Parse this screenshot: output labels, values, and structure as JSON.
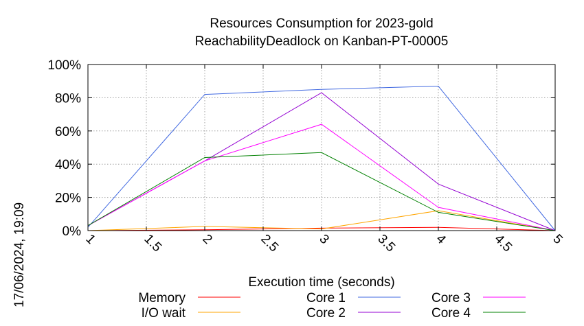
{
  "chart_data": {
    "type": "line",
    "title": "Resources Consumption for 2023-gold",
    "subtitle": "ReachabilityDeadlock on Kanban-PT-00005",
    "xlabel": "Execution time (seconds)",
    "ylabel": "",
    "timestamp": "17/06/2024, 19:09",
    "xlim": [
      1,
      5
    ],
    "ylim": [
      0,
      100
    ],
    "x_ticks": [
      "1",
      "1.5",
      "2",
      "2.5",
      "3",
      "3.5",
      "4",
      "4.5",
      "5"
    ],
    "y_ticks": [
      "0%",
      "20%",
      "40%",
      "60%",
      "80%",
      "100%"
    ],
    "grid": true,
    "legend_position": "bottom",
    "series": [
      {
        "name": "Memory",
        "color": "#ff0000",
        "x": [
          1,
          2,
          3,
          4,
          5
        ],
        "y": [
          0,
          0.5,
          1.5,
          2,
          0
        ]
      },
      {
        "name": "I/O wait",
        "color": "#ffa500",
        "x": [
          1,
          2,
          3,
          4,
          5
        ],
        "y": [
          0,
          2.5,
          1,
          12,
          0
        ]
      },
      {
        "name": "Core 1",
        "color": "#4169e1",
        "x": [
          1,
          2,
          3,
          4,
          5
        ],
        "y": [
          2,
          82,
          85,
          87,
          0
        ]
      },
      {
        "name": "Core 2",
        "color": "#9400d3",
        "x": [
          1,
          2,
          3,
          4,
          5
        ],
        "y": [
          3,
          42,
          83,
          28,
          0
        ]
      },
      {
        "name": "Core 3",
        "color": "#ff00ff",
        "x": [
          1,
          2,
          3,
          4,
          5
        ],
        "y": [
          3,
          42,
          64,
          14,
          0
        ]
      },
      {
        "name": "Core 4",
        "color": "#008000",
        "x": [
          1,
          2,
          3,
          4,
          5
        ],
        "y": [
          3,
          44,
          47,
          11,
          0
        ]
      }
    ]
  }
}
